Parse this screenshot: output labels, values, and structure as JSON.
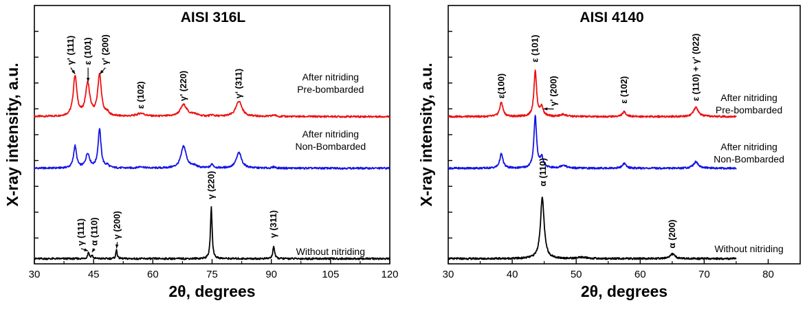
{
  "colors": {
    "pre": "#ee1111",
    "non": "#1414e6",
    "without": "#000000"
  },
  "chart_data": [
    {
      "type": "line",
      "title": "AISI 316L",
      "xlabel": "2θ, degrees",
      "ylabel": "X-ray intensity, a.u.",
      "xlim": [
        30,
        120
      ],
      "xticks": [
        30,
        45,
        60,
        75,
        90,
        105,
        120
      ],
      "ylim": [
        0,
        10
      ],
      "yticks": [
        1,
        2,
        3,
        4,
        5,
        6,
        7,
        8,
        9
      ],
      "grid": false,
      "series": [
        {
          "key": "pre",
          "name": "After nitriding Pre-bombarded",
          "label_lines": [
            "After nitriding",
            "Pre-bombarded"
          ],
          "baseline": 5.7,
          "peaks": [
            [
              40.3,
              1.55,
              0.55
            ],
            [
              43.5,
              1.25,
              0.65
            ],
            [
              46.5,
              1.6,
              0.55
            ],
            [
              48.5,
              0.12,
              0.5
            ],
            [
              57.0,
              0.12,
              1.2
            ],
            [
              67.8,
              0.45,
              1.0
            ],
            [
              70.5,
              0.08,
              1.0
            ],
            [
              75.0,
              0.05,
              0.5
            ],
            [
              81.8,
              0.6,
              0.9
            ],
            [
              90.7,
              0.06,
              0.5
            ]
          ]
        },
        {
          "key": "non",
          "name": "After nitriding Non-Bombarded",
          "label_lines": [
            "After nitriding",
            "Non-Bombarded"
          ],
          "baseline": 3.7,
          "peaks": [
            [
              40.3,
              0.85,
              0.45
            ],
            [
              43.5,
              0.55,
              0.6
            ],
            [
              46.5,
              1.5,
              0.45
            ],
            [
              48.5,
              0.1,
              0.4
            ],
            [
              57.0,
              0.06,
              0.8
            ],
            [
              67.8,
              0.85,
              0.8
            ],
            [
              70.5,
              0.08,
              0.8
            ],
            [
              75.0,
              0.15,
              0.4
            ],
            [
              81.8,
              0.6,
              0.8
            ],
            [
              90.7,
              0.05,
              0.4
            ]
          ]
        },
        {
          "key": "without",
          "name": "Without nitriding",
          "label_lines": [
            "Without nitriding"
          ],
          "baseline": 0.2,
          "peaks": [
            [
              43.7,
              0.25,
              0.25
            ],
            [
              44.6,
              0.12,
              0.25
            ],
            [
              50.8,
              0.35,
              0.2
            ],
            [
              74.8,
              2.0,
              0.25
            ],
            [
              90.6,
              0.5,
              0.25
            ]
          ]
        }
      ],
      "annotations": [
        {
          "text": "γ' (111)",
          "x": 39.2,
          "y": 7.7,
          "arrow": true,
          "ax": 40.3,
          "ay": 7.35,
          "rot": -90
        },
        {
          "text": "ε (101)",
          "x": 43.6,
          "y": 7.7,
          "arrow": true,
          "ax": 43.6,
          "ay": 7.05,
          "rot": -90
        },
        {
          "text": "γ' (200)",
          "x": 48.0,
          "y": 7.7,
          "arrow": true,
          "ax": 46.6,
          "ay": 7.35,
          "rot": -90
        },
        {
          "text": "ε (102)",
          "x": 57.0,
          "y": 6.0,
          "arrow": false,
          "rot": -90
        },
        {
          "text": "γ' (220)",
          "x": 67.8,
          "y": 6.3,
          "arrow": false,
          "rot": -90
        },
        {
          "text": "γ' (311)",
          "x": 81.8,
          "y": 6.4,
          "arrow": false,
          "rot": -90
        },
        {
          "text": "γ (111)",
          "x": 41.8,
          "y": 0.7,
          "arrow": true,
          "ax": 43.6,
          "ay": 0.5,
          "rot": -90
        },
        {
          "text": "α (110)",
          "x": 45.2,
          "y": 0.7,
          "arrow": true,
          "ax": 44.6,
          "ay": 0.45,
          "rot": -90
        },
        {
          "text": "γ (200)",
          "x": 51.0,
          "y": 0.95,
          "arrow": true,
          "ax": 50.8,
          "ay": 0.6,
          "rot": -90
        },
        {
          "text": "γ (220)",
          "x": 74.8,
          "y": 2.5,
          "arrow": false,
          "rot": -90
        },
        {
          "text": "γ (311)",
          "x": 90.6,
          "y": 1.0,
          "arrow": false,
          "rot": -90
        }
      ]
    },
    {
      "type": "line",
      "title": "AISI 4140",
      "xlabel": "2θ, degrees",
      "ylabel": "X-ray intensity, a.u.",
      "xlim": [
        30,
        85
      ],
      "xticks": [
        30,
        40,
        50,
        60,
        70,
        80
      ],
      "ylim": [
        0,
        10
      ],
      "yticks": [
        1,
        2,
        3,
        4,
        5,
        6,
        7,
        8,
        9
      ],
      "grid": false,
      "series": [
        {
          "key": "pre",
          "name": "After nitriding Pre-bombarded",
          "label_lines": [
            "After nitriding",
            "Pre-bombarded"
          ],
          "baseline": 5.7,
          "peaks": [
            [
              38.3,
              0.55,
              0.3
            ],
            [
              43.6,
              1.75,
              0.25
            ],
            [
              44.6,
              0.35,
              0.3
            ],
            [
              48.0,
              0.08,
              0.5
            ],
            [
              57.5,
              0.18,
              0.35
            ],
            [
              68.7,
              0.35,
              0.45
            ]
          ]
        },
        {
          "key": "non",
          "name": "After nitriding Non-Bombarded",
          "label_lines": [
            "After nitriding",
            "Non-Bombarded"
          ],
          "baseline": 3.7,
          "peaks": [
            [
              38.3,
              0.55,
              0.3
            ],
            [
              43.6,
              2.0,
              0.25
            ],
            [
              44.6,
              0.4,
              0.3
            ],
            [
              48.0,
              0.12,
              0.5
            ],
            [
              57.5,
              0.18,
              0.35
            ],
            [
              68.7,
              0.25,
              0.45
            ]
          ]
        },
        {
          "key": "without",
          "name": "Without nitriding",
          "label_lines": [
            "Without nitriding"
          ],
          "baseline": 0.2,
          "peaks": [
            [
              44.7,
              2.35,
              0.35
            ],
            [
              51.0,
              0.05,
              0.8
            ],
            [
              65.0,
              0.18,
              0.45
            ]
          ]
        }
      ],
      "annotations": [
        {
          "text": "ε(100)",
          "x": 38.3,
          "y": 6.4,
          "arrow": false,
          "rot": -90
        },
        {
          "text": "ε (101)",
          "x": 43.6,
          "y": 7.8,
          "arrow": false,
          "rot": -90
        },
        {
          "text": "γ' (200)",
          "x": 46.5,
          "y": 6.1,
          "arrow": true,
          "ax": 44.9,
          "ay": 6.0,
          "rot": -90
        },
        {
          "text": "ε (102)",
          "x": 57.5,
          "y": 6.2,
          "arrow": false,
          "rot": -90
        },
        {
          "text": "ε (110) + γ' (022)",
          "x": 68.7,
          "y": 6.3,
          "arrow": false,
          "rot": -90
        },
        {
          "text": "α (110)",
          "x": 44.8,
          "y": 3.0,
          "arrow": false,
          "rot": -90
        },
        {
          "text": "α (200)",
          "x": 65.0,
          "y": 0.6,
          "arrow": false,
          "rot": -90
        }
      ]
    }
  ],
  "panels": [
    {
      "series_labels": [
        {
          "x": 105,
          "y": 7.1,
          "lines": [
            "After nitriding",
            "Pre-bombarded"
          ]
        },
        {
          "x": 105,
          "y": 4.9,
          "lines": [
            "After nitriding",
            "Non-Bombarded"
          ]
        },
        {
          "x": 105,
          "y": 0.35,
          "lines": [
            "Without nitriding"
          ]
        }
      ]
    },
    {
      "series_labels": [
        {
          "x": 77,
          "y": 6.3,
          "lines": [
            "After nitriding",
            "Pre-bombarded"
          ]
        },
        {
          "x": 77,
          "y": 4.4,
          "lines": [
            "After nitriding",
            "Non-Bombarded"
          ]
        },
        {
          "x": 77,
          "y": 0.45,
          "lines": [
            "Without nitriding"
          ]
        }
      ]
    }
  ]
}
